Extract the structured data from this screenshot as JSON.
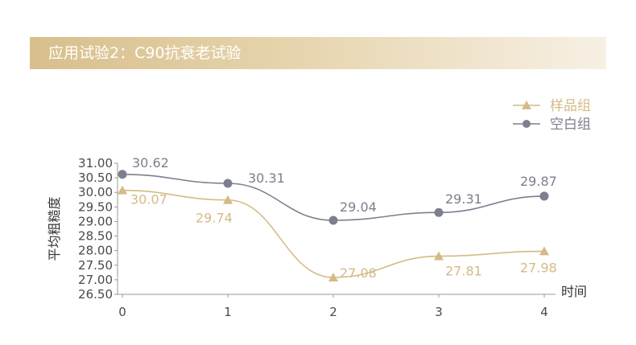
{
  "header": {
    "title": "应用试验2：C90抗衰老试验"
  },
  "chart_data": {
    "type": "line",
    "categories": [
      "0",
      "1",
      "2",
      "3",
      "4"
    ],
    "series": [
      {
        "name": "样品组",
        "values": [
          30.07,
          29.74,
          27.08,
          27.81,
          27.98
        ],
        "color": "#d4bb86",
        "marker": "triangle"
      },
      {
        "name": "空白组",
        "values": [
          30.62,
          30.31,
          29.04,
          29.31,
          29.87
        ],
        "color": "#7b7f8e",
        "marker": "circle"
      }
    ],
    "ylabel": "平均粗糙度",
    "xlabel": "时间",
    "ylim": [
      26.5,
      31.0
    ],
    "yticks": [
      "26.50",
      "27.00",
      "27.50",
      "28.00",
      "28.50",
      "29.00",
      "29.50",
      "30.00",
      "30.50",
      "31.00"
    ],
    "smooth": true,
    "grid": false,
    "legend_position": "top-right"
  }
}
